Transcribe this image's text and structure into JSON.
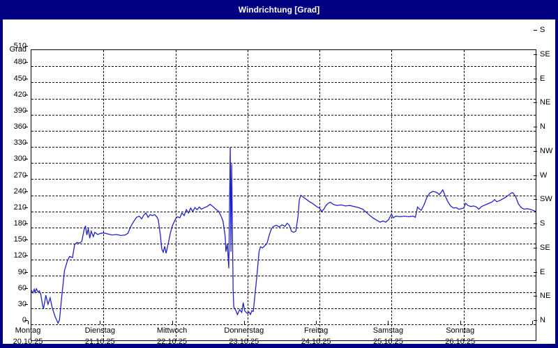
{
  "window": {
    "title": "Windrichtung [Grad]"
  },
  "colors": {
    "window_frame": "#000080",
    "plot_background": "#ffffff",
    "line": "#2121c8",
    "grid": "#000000",
    "text": "#000000",
    "title_text": "#ffffff"
  },
  "chart_data": {
    "type": "line",
    "title": "Windrichtung [Grad]",
    "ylabel_left": "Grad",
    "grid": "dashed",
    "legend": "none",
    "y_axis_left": {
      "min": 0,
      "max": 540,
      "tick_step": 30,
      "ticks": [
        0,
        30,
        60,
        90,
        120,
        150,
        180,
        210,
        240,
        270,
        300,
        330,
        360,
        390,
        420,
        450,
        480,
        510
      ]
    },
    "y_axis_right": {
      "unit": "compass",
      "ticks": [
        {
          "deg": 540,
          "label": "S"
        },
        {
          "deg": 495,
          "label": "SE"
        },
        {
          "deg": 450,
          "label": "E"
        },
        {
          "deg": 405,
          "label": "NE"
        },
        {
          "deg": 360,
          "label": "N"
        },
        {
          "deg": 315,
          "label": "NW"
        },
        {
          "deg": 270,
          "label": "W"
        },
        {
          "deg": 225,
          "label": "SW"
        },
        {
          "deg": 180,
          "label": "S"
        },
        {
          "deg": 135,
          "label": "SE"
        },
        {
          "deg": 90,
          "label": "E"
        },
        {
          "deg": 45,
          "label": "NE"
        },
        {
          "deg": 0,
          "label": "N"
        }
      ]
    },
    "x_axis": {
      "span_days": 7,
      "days": [
        {
          "name": "Montag",
          "date": "20.10.25"
        },
        {
          "name": "Dienstag",
          "date": "21.10.25"
        },
        {
          "name": "Mittwoch",
          "date": "22.10.25"
        },
        {
          "name": "Donnerstag",
          "date": "23.10.25"
        },
        {
          "name": "Freitag",
          "date": "24.10.25"
        },
        {
          "name": "Samstag",
          "date": "25.10.25"
        },
        {
          "name": "Sonntag",
          "date": "26.10.25"
        }
      ]
    },
    "series": [
      {
        "name": "Windrichtung",
        "color": "#2121c8",
        "points": [
          [
            0,
            93
          ],
          [
            0.02,
            88
          ],
          [
            0.04,
            95
          ],
          [
            0.05,
            89
          ],
          [
            0.07,
            96
          ],
          [
            0.09,
            90
          ],
          [
            0.11,
            92
          ],
          [
            0.13,
            86
          ],
          [
            0.16,
            62
          ],
          [
            0.17,
            60
          ],
          [
            0.2,
            84
          ],
          [
            0.23,
            67
          ],
          [
            0.26,
            79
          ],
          [
            0.29,
            60
          ],
          [
            0.33,
            44
          ],
          [
            0.37,
            32
          ],
          [
            0.39,
            38
          ],
          [
            0.42,
            80
          ],
          [
            0.46,
            130
          ],
          [
            0.5,
            148
          ],
          [
            0.53,
            156
          ],
          [
            0.57,
            154
          ],
          [
            0.6,
            178
          ],
          [
            0.63,
            182
          ],
          [
            0.67,
            181
          ],
          [
            0.7,
            184
          ],
          [
            0.73,
            205
          ],
          [
            0.75,
            213
          ],
          [
            0.77,
            196
          ],
          [
            0.79,
            208
          ],
          [
            0.81,
            190
          ],
          [
            0.83,
            203
          ],
          [
            0.86,
            193
          ],
          [
            0.88,
            201
          ],
          [
            0.92,
            197
          ],
          [
            0.96,
            199
          ],
          [
            1,
            200
          ],
          [
            1.06,
            198
          ],
          [
            1.12,
            196
          ],
          [
            1.18,
            197
          ],
          [
            1.24,
            195
          ],
          [
            1.3,
            196
          ],
          [
            1.34,
            199
          ],
          [
            1.38,
            212
          ],
          [
            1.42,
            221
          ],
          [
            1.46,
            229
          ],
          [
            1.5,
            231
          ],
          [
            1.53,
            226
          ],
          [
            1.56,
            233
          ],
          [
            1.59,
            237
          ],
          [
            1.62,
            229
          ],
          [
            1.65,
            234
          ],
          [
            1.68,
            232
          ],
          [
            1.71,
            234
          ],
          [
            1.74,
            230
          ],
          [
            1.76,
            225
          ],
          [
            1.79,
            196
          ],
          [
            1.81,
            170
          ],
          [
            1.83,
            164
          ],
          [
            1.85,
            175
          ],
          [
            1.87,
            162
          ],
          [
            1.9,
            180
          ],
          [
            1.93,
            200
          ],
          [
            1.96,
            214
          ],
          [
            2,
            226
          ],
          [
            2.03,
            230
          ],
          [
            2.06,
            228
          ],
          [
            2.09,
            237
          ],
          [
            2.12,
            232
          ],
          [
            2.15,
            243
          ],
          [
            2.18,
            237
          ],
          [
            2.21,
            246
          ],
          [
            2.24,
            240
          ],
          [
            2.27,
            247
          ],
          [
            2.3,
            243
          ],
          [
            2.33,
            248
          ],
          [
            2.36,
            244
          ],
          [
            2.4,
            247
          ],
          [
            2.44,
            249
          ],
          [
            2.48,
            253
          ],
          [
            2.52,
            249
          ],
          [
            2.56,
            244
          ],
          [
            2.6,
            240
          ],
          [
            2.63,
            232
          ],
          [
            2.66,
            222
          ],
          [
            2.69,
            194
          ],
          [
            2.7,
            165
          ],
          [
            2.72,
            180
          ],
          [
            2.74,
            134
          ],
          [
            2.76,
            360
          ],
          [
            2.77,
            165
          ],
          [
            2.78,
            328
          ],
          [
            2.8,
            95
          ],
          [
            2.81,
            62
          ],
          [
            2.84,
            55
          ],
          [
            2.86,
            48
          ],
          [
            2.89,
            57
          ],
          [
            2.92,
            52
          ],
          [
            2.94,
            70
          ],
          [
            2.96,
            55
          ],
          [
            2.98,
            52
          ],
          [
            3,
            50
          ],
          [
            3.02,
            53
          ],
          [
            3.04,
            48
          ],
          [
            3.06,
            55
          ],
          [
            3.08,
            54
          ],
          [
            3.1,
            80
          ],
          [
            3.13,
            120
          ],
          [
            3.16,
            165
          ],
          [
            3.18,
            174
          ],
          [
            3.21,
            172
          ],
          [
            3.24,
            176
          ],
          [
            3.27,
            180
          ],
          [
            3.3,
            195
          ],
          [
            3.33,
            207
          ],
          [
            3.36,
            212
          ],
          [
            3.4,
            214
          ],
          [
            3.44,
            211
          ],
          [
            3.48,
            215
          ],
          [
            3.52,
            212
          ],
          [
            3.55,
            218
          ],
          [
            3.58,
            214
          ],
          [
            3.61,
            203
          ],
          [
            3.64,
            201
          ],
          [
            3.67,
            203
          ],
          [
            3.7,
            230
          ],
          [
            3.72,
            262
          ],
          [
            3.74,
            270
          ],
          [
            3.78,
            266
          ],
          [
            3.82,
            262
          ],
          [
            3.86,
            258
          ],
          [
            3.9,
            255
          ],
          [
            3.94,
            251
          ],
          [
            3.97,
            248
          ],
          [
            4,
            246
          ],
          [
            4.03,
            240
          ],
          [
            4.06,
            244
          ],
          [
            4.09,
            251
          ],
          [
            4.12,
            255
          ],
          [
            4.15,
            257
          ],
          [
            4.19,
            253
          ],
          [
            4.24,
            251
          ],
          [
            4.3,
            252
          ],
          [
            4.36,
            250
          ],
          [
            4.42,
            251
          ],
          [
            4.48,
            249
          ],
          [
            4.54,
            247
          ],
          [
            4.6,
            244
          ],
          [
            4.65,
            238
          ],
          [
            4.7,
            232
          ],
          [
            4.75,
            227
          ],
          [
            4.8,
            223
          ],
          [
            4.84,
            220
          ],
          [
            4.88,
            222
          ],
          [
            4.92,
            220
          ],
          [
            4.96,
            225
          ],
          [
            5,
            235
          ],
          [
            5.02,
            228
          ],
          [
            5.06,
            231
          ],
          [
            5.12,
            230
          ],
          [
            5.18,
            231
          ],
          [
            5.24,
            230
          ],
          [
            5.3,
            231
          ],
          [
            5.33,
            229
          ],
          [
            5.36,
            248
          ],
          [
            5.39,
            244
          ],
          [
            5.41,
            242
          ],
          [
            5.45,
            252
          ],
          [
            5.49,
            266
          ],
          [
            5.53,
            274
          ],
          [
            5.57,
            277
          ],
          [
            5.61,
            276
          ],
          [
            5.64,
            274
          ],
          [
            5.66,
            271
          ],
          [
            5.69,
            276
          ],
          [
            5.71,
            280
          ],
          [
            5.74,
            270
          ],
          [
            5.78,
            258
          ],
          [
            5.82,
            250
          ],
          [
            5.86,
            246
          ],
          [
            5.9,
            247
          ],
          [
            5.93,
            244
          ],
          [
            5.97,
            245
          ],
          [
            6,
            246
          ],
          [
            6.03,
            255
          ],
          [
            6.06,
            251
          ],
          [
            6.1,
            249
          ],
          [
            6.14,
            250
          ],
          [
            6.18,
            248
          ],
          [
            6.21,
            244
          ],
          [
            6.25,
            249
          ],
          [
            6.3,
            252
          ],
          [
            6.35,
            255
          ],
          [
            6.4,
            258
          ],
          [
            6.43,
            262
          ],
          [
            6.46,
            258
          ],
          [
            6.5,
            260
          ],
          [
            6.54,
            263
          ],
          [
            6.58,
            266
          ],
          [
            6.62,
            270
          ],
          [
            6.66,
            274
          ],
          [
            6.68,
            275
          ],
          [
            6.72,
            268
          ],
          [
            6.76,
            254
          ],
          [
            6.8,
            247
          ],
          [
            6.84,
            244
          ],
          [
            6.88,
            245
          ],
          [
            6.92,
            244
          ],
          [
            6.96,
            242
          ],
          [
            7,
            240
          ]
        ]
      }
    ]
  }
}
